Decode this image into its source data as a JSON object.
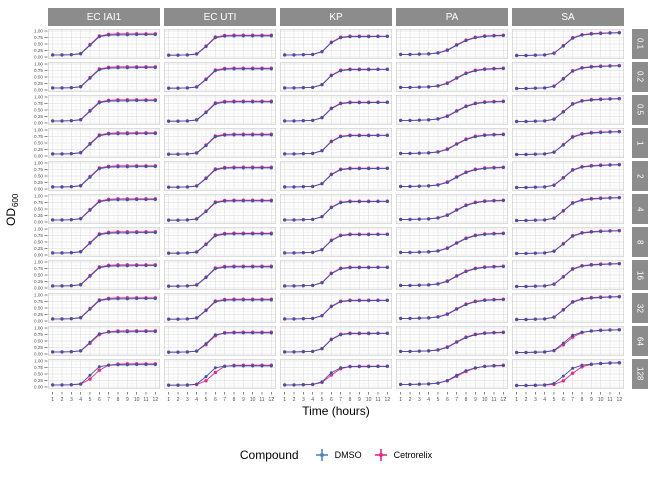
{
  "chart_data": {
    "type": "line",
    "title": "",
    "x": [
      1,
      2,
      3,
      4,
      5,
      6,
      7,
      8,
      9,
      10,
      11,
      12
    ],
    "x_label": "Time (hours)",
    "y_label_main": "OD",
    "y_label_sub": "600",
    "ylim": [
      0,
      1
    ],
    "ytick_labels": [
      "1.00",
      "0.75",
      "0.50",
      "0.25",
      "0.00"
    ],
    "ytick_values": [
      1.0,
      0.75,
      0.5,
      0.25,
      0.0
    ],
    "xtick_labels": [
      "1",
      "2",
      "3",
      "4",
      "5",
      "6",
      "7",
      "8",
      "9",
      "10",
      "11",
      "12"
    ],
    "grid": true,
    "row_facets": [
      "0.1",
      "0.2",
      "0.5",
      "1",
      "2",
      "4",
      "8",
      "16",
      "32",
      "64",
      "128"
    ],
    "col_facets": [
      {
        "name": "EC IAI1",
        "series": {
          "DMSO": [
            0.08,
            0.08,
            0.09,
            0.12,
            0.45,
            0.78,
            0.84,
            0.85,
            0.85,
            0.86,
            0.86,
            0.86
          ],
          "Cetrorelix": [
            0.08,
            0.08,
            0.09,
            0.13,
            0.48,
            0.81,
            0.87,
            0.89,
            0.89,
            0.89,
            0.89,
            0.89
          ]
        },
        "cetrorelix_lag_by_row": {
          "64": 0.2,
          "128": 0.5
        }
      },
      {
        "name": "EC UTI",
        "series": {
          "DMSO": [
            0.07,
            0.07,
            0.08,
            0.11,
            0.4,
            0.74,
            0.8,
            0.81,
            0.81,
            0.81,
            0.81,
            0.81
          ],
          "Cetrorelix": [
            0.07,
            0.07,
            0.08,
            0.12,
            0.42,
            0.77,
            0.83,
            0.84,
            0.84,
            0.84,
            0.84,
            0.84
          ]
        },
        "cetrorelix_lag_by_row": {
          "64": 0.2,
          "128": 0.6
        }
      },
      {
        "name": "KP",
        "series": {
          "DMSO": [
            0.08,
            0.08,
            0.09,
            0.1,
            0.2,
            0.55,
            0.74,
            0.78,
            0.78,
            0.78,
            0.79,
            0.79
          ],
          "Cetrorelix": [
            0.08,
            0.08,
            0.09,
            0.1,
            0.21,
            0.57,
            0.76,
            0.8,
            0.8,
            0.8,
            0.8,
            0.8
          ]
        },
        "cetrorelix_lag_by_row": {
          "128": 0.3
        }
      },
      {
        "name": "PA",
        "series": {
          "DMSO": [
            0.1,
            0.1,
            0.11,
            0.12,
            0.15,
            0.25,
            0.45,
            0.63,
            0.74,
            0.79,
            0.81,
            0.82
          ],
          "Cetrorelix": [
            0.1,
            0.1,
            0.11,
            0.12,
            0.16,
            0.27,
            0.47,
            0.65,
            0.76,
            0.81,
            0.83,
            0.84
          ]
        },
        "cetrorelix_lag_by_row": {
          "128": 0.3
        }
      },
      {
        "name": "SA",
        "series": {
          "DMSO": [
            0.06,
            0.06,
            0.07,
            0.08,
            0.14,
            0.42,
            0.72,
            0.84,
            0.88,
            0.9,
            0.92,
            0.93
          ],
          "Cetrorelix": [
            0.06,
            0.06,
            0.07,
            0.08,
            0.15,
            0.44,
            0.74,
            0.86,
            0.9,
            0.92,
            0.93,
            0.94
          ]
        },
        "cetrorelix_lag_by_row": {
          "64": 0.3,
          "128": 0.7
        }
      }
    ],
    "legend": {
      "title": "Compound",
      "position": "bottom",
      "entries": [
        {
          "label": "DMSO",
          "color": "#4f86c6"
        },
        {
          "label": "Cetrorelix",
          "color": "#e7298a"
        }
      ]
    },
    "colors": {
      "strip_background": "#8c8c8c",
      "strip_text": "#ffffff",
      "panel_background": "#ffffff",
      "panel_border": "#c9c9c9",
      "grid_major": "#e3e3e3",
      "grid_minor": "#f2f2f2",
      "tick_text": "#4d4d4d",
      "dmso_point": "#3f51a3",
      "cetrorelix_point": "#e7298a"
    }
  }
}
